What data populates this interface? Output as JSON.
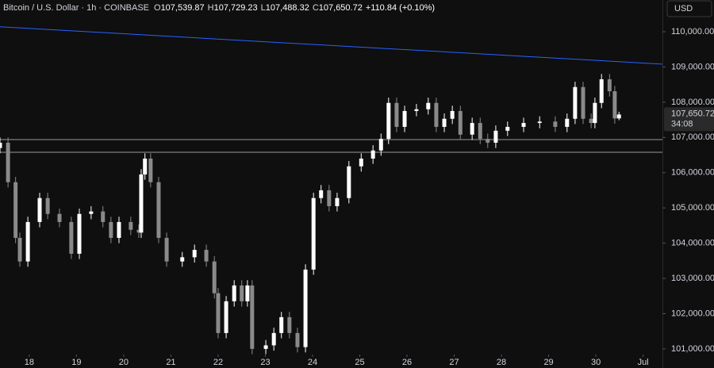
{
  "header": {
    "symbol": "Bitcoin / U.S. Dollar · 1h · COINBASE",
    "ohlc": [
      {
        "label": "O",
        "value": "107,539.87"
      },
      {
        "label": "H",
        "value": "107,729.23"
      },
      {
        "label": "L",
        "value": "107,488.32"
      },
      {
        "label": "C",
        "value": "107,650.72"
      }
    ],
    "change": "+110.84 (+0.10%)"
  },
  "chart_data": {
    "type": "candlestick",
    "x": [
      17.38,
      17.55,
      17.71,
      17.8,
      17.97,
      18.22,
      18.39,
      18.64,
      18.89,
      19.06,
      19.31,
      19.56,
      19.73,
      19.9,
      20.15,
      20.32,
      20.37,
      20.45,
      20.57,
      20.74,
      20.91,
      21.24,
      21.5,
      21.75,
      21.92,
      22.0,
      22.17,
      22.34,
      22.5,
      22.62,
      22.72,
      23.01,
      23.18,
      23.34,
      23.51,
      23.68,
      23.85,
      24.02,
      24.18,
      24.35,
      24.52,
      24.77,
      25.03,
      25.28,
      25.45,
      25.61,
      25.78,
      25.95,
      26.2,
      26.45,
      26.62,
      26.79,
      26.96,
      27.13,
      27.38,
      27.55,
      27.71,
      27.88,
      28.13,
      28.47,
      28.81,
      29.14,
      29.39,
      29.56,
      29.73,
      29.9,
      29.98,
      30.12,
      30.29,
      30.4,
      30.49
    ],
    "open": [
      106700,
      106850,
      105730,
      104150,
      103480,
      104600,
      105280,
      104830,
      104600,
      103700,
      104830,
      104900,
      104600,
      104150,
      104600,
      104380,
      104300,
      105950,
      106400,
      105730,
      104150,
      103480,
      103600,
      103810,
      103480,
      102580,
      101450,
      102350,
      102800,
      102350,
      102800,
      101000,
      101100,
      101450,
      101900,
      101450,
      101050,
      103250,
      105280,
      105500,
      105050,
      105280,
      106180,
      106400,
      106630,
      106960,
      107980,
      107300,
      107750,
      107800,
      107980,
      107300,
      107530,
      107750,
      107080,
      107410,
      106960,
      106850,
      107190,
      107300,
      107410,
      107450,
      107300,
      107530,
      108430,
      107530,
      107410,
      107980,
      108650,
      108310,
      107539.87
    ],
    "high": [
      107000,
      107000,
      105880,
      104300,
      104750,
      105430,
      105430,
      104980,
      104750,
      104980,
      105050,
      105050,
      104750,
      104750,
      104750,
      104530,
      106100,
      106550,
      106550,
      105880,
      104300,
      103750,
      103960,
      103960,
      103630,
      102730,
      102500,
      102950,
      102950,
      102950,
      102950,
      101250,
      101600,
      102050,
      102050,
      101600,
      103400,
      105430,
      105650,
      105650,
      105430,
      106330,
      106550,
      106780,
      107110,
      108130,
      108130,
      107900,
      107950,
      108130,
      108130,
      107680,
      107900,
      107900,
      107560,
      107560,
      107110,
      107340,
      107450,
      107560,
      107600,
      107600,
      107680,
      108580,
      108580,
      107680,
      108130,
      108800,
      108800,
      108460,
      107729.23
    ],
    "low": [
      106550,
      105580,
      104000,
      103330,
      103330,
      104450,
      104680,
      104450,
      103550,
      103550,
      104680,
      104450,
      104000,
      104000,
      104230,
      104150,
      104150,
      105800,
      105580,
      104000,
      103330,
      103330,
      103450,
      103330,
      102430,
      101300,
      101300,
      102200,
      102200,
      102200,
      100850,
      100850,
      100950,
      101300,
      101300,
      100900,
      100900,
      103100,
      105130,
      104900,
      104900,
      105130,
      106030,
      106250,
      106480,
      106810,
      107150,
      107150,
      107600,
      107650,
      107150,
      107150,
      107380,
      106930,
      106930,
      106810,
      106700,
      106700,
      107040,
      107150,
      107260,
      107150,
      107150,
      107380,
      107380,
      107260,
      107260,
      107830,
      108160,
      107390,
      107488.32
    ],
    "close": [
      106850,
      105730,
      104150,
      103480,
      104600,
      105280,
      104830,
      104600,
      103700,
      104830,
      104900,
      104600,
      104150,
      104600,
      104380,
      104300,
      105950,
      106400,
      105730,
      104150,
      103480,
      103600,
      103810,
      103480,
      102580,
      101450,
      102350,
      102800,
      102350,
      102800,
      101000,
      101100,
      101450,
      101900,
      101450,
      101050,
      103250,
      105280,
      105500,
      105050,
      105280,
      106180,
      106400,
      106630,
      106960,
      107980,
      107300,
      107750,
      107800,
      107980,
      107300,
      107530,
      107750,
      107080,
      107410,
      106960,
      106850,
      107190,
      107300,
      107410,
      107450,
      107300,
      107530,
      108430,
      107530,
      107410,
      107980,
      108650,
      108310,
      107540,
      107650.72
    ],
    "up_color": "#ffffff",
    "down_color": "#8a8a8a",
    "xlim": [
      17.38,
      31.41
    ],
    "ylim": [
      100840,
      110900
    ],
    "xticks": [
      18,
      19,
      20,
      21,
      22,
      23,
      24,
      25,
      26,
      27,
      28,
      29,
      30,
      {
        "value": 31,
        "label": "Jul"
      }
    ],
    "yticks": [
      {
        "value": 101000,
        "label": "101,000.00"
      },
      {
        "value": 102000,
        "label": "102,000.00"
      },
      {
        "value": 103000,
        "label": "103,000.00"
      },
      {
        "value": 104000,
        "label": "104,000.00"
      },
      {
        "value": 105000,
        "label": "105,000.00"
      },
      {
        "value": 106000,
        "label": "106,000.00"
      },
      {
        "value": 107000,
        "label": "107,000.00"
      },
      {
        "value": 108000,
        "label": "108,000.00"
      },
      {
        "value": 109000,
        "label": "109,000.00"
      },
      {
        "value": 110000,
        "label": "110,000.00"
      }
    ],
    "trendline": {
      "x": [
        17.38,
        31.41
      ],
      "y": [
        110140,
        109080
      ],
      "color": "#2962ff"
    },
    "levels": {
      "values": [
        106940,
        106580
      ],
      "color": "#9598a1"
    },
    "currency": "USD",
    "last_label": "107,650.72",
    "countdown": "34:08"
  }
}
